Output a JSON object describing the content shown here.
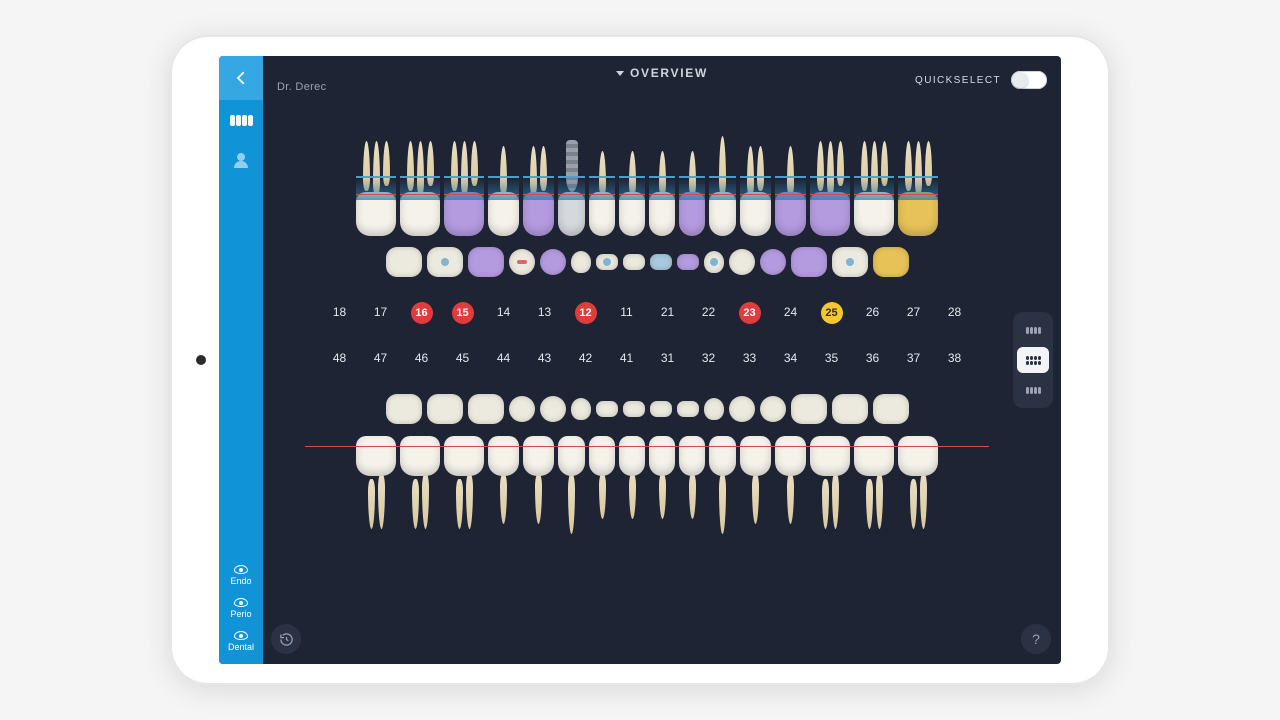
{
  "colors": {
    "sidebar": "#1193d8",
    "sidebar_light": "#35a8e4",
    "screen_bg": "#1e2433",
    "panel_bg": "#2b3244",
    "text_muted": "#9aa3b2",
    "text": "#e3e7ef",
    "badge_red": "#e13b3b",
    "badge_yellow": "#f2c72f",
    "perio_line": "#d94b4b",
    "gum_overlay": "#2b7aa8",
    "fill_purple": "#b49be0",
    "fill_blue": "#8fc2d9",
    "fill_yellow": "#e6c259",
    "tooth": "#ebe5d8",
    "implant": "#9aa0aa"
  },
  "header": {
    "doctor": "Dr. Derec",
    "title": "OVERVIEW",
    "quickselect_label": "QUICKSELECT",
    "quickselect_on": false
  },
  "sidebar": {
    "top_icons": [
      {
        "name": "teeth-chart-icon",
        "active": true
      },
      {
        "name": "patient-icon",
        "active": false
      }
    ],
    "bottom": [
      {
        "name": "endo-toggle",
        "label": "Endo"
      },
      {
        "name": "perio-toggle",
        "label": "Perio"
      },
      {
        "name": "dental-toggle",
        "label": "Dental"
      }
    ]
  },
  "view_selector": {
    "options": [
      "upper",
      "both",
      "lower"
    ],
    "active_index": 1
  },
  "teeth": {
    "upper": [
      {
        "num": 18,
        "type": "molar",
        "fill": "white",
        "occ": "white",
        "roots": 3
      },
      {
        "num": 17,
        "type": "molar",
        "fill": "white",
        "occ": "white",
        "roots": 3,
        "occ_mark": "blue"
      },
      {
        "num": 16,
        "type": "molar",
        "fill": "purple",
        "occ": "purple",
        "roots": 3,
        "badge": "red"
      },
      {
        "num": 15,
        "type": "premolar",
        "fill": "white",
        "occ": "white",
        "roots": 1,
        "occ_mark": "red",
        "badge": "red"
      },
      {
        "num": 14,
        "type": "premolar",
        "fill": "purple",
        "occ": "purple",
        "roots": 2
      },
      {
        "num": 13,
        "type": "canine",
        "fill": "white",
        "occ": "white",
        "roots": 1,
        "implant": true
      },
      {
        "num": 12,
        "type": "incisor",
        "fill": "white",
        "occ": "white",
        "roots": 1,
        "occ_mark": "blue",
        "badge": "red"
      },
      {
        "num": 11,
        "type": "incisor",
        "fill": "white",
        "occ": "white",
        "roots": 1
      },
      {
        "num": 21,
        "type": "incisor",
        "fill": "white",
        "occ": "blue",
        "roots": 1
      },
      {
        "num": 22,
        "type": "incisor",
        "fill": "purple",
        "occ": "purple",
        "roots": 1
      },
      {
        "num": 23,
        "type": "canine",
        "fill": "white",
        "occ": "white",
        "roots": 1,
        "occ_mark": "blue",
        "badge": "red"
      },
      {
        "num": 24,
        "type": "premolar",
        "fill": "white",
        "occ": "white",
        "roots": 2
      },
      {
        "num": 25,
        "type": "premolar",
        "fill": "purple",
        "occ": "purple",
        "roots": 1,
        "badge": "yellow"
      },
      {
        "num": 26,
        "type": "molar",
        "fill": "purple",
        "occ": "purple",
        "roots": 3
      },
      {
        "num": 27,
        "type": "molar",
        "fill": "white",
        "occ": "white",
        "roots": 3,
        "occ_mark": "blue"
      },
      {
        "num": 28,
        "type": "molar",
        "fill": "yellow",
        "occ": "yellow",
        "roots": 3
      }
    ],
    "lower": [
      {
        "num": 48,
        "type": "molar",
        "roots": 2
      },
      {
        "num": 47,
        "type": "molar",
        "roots": 2
      },
      {
        "num": 46,
        "type": "molar",
        "roots": 2
      },
      {
        "num": 45,
        "type": "premolar",
        "roots": 1
      },
      {
        "num": 44,
        "type": "premolar",
        "roots": 1
      },
      {
        "num": 43,
        "type": "canine",
        "roots": 1
      },
      {
        "num": 42,
        "type": "incisor",
        "roots": 1
      },
      {
        "num": 41,
        "type": "incisor",
        "roots": 1
      },
      {
        "num": 31,
        "type": "incisor",
        "roots": 1
      },
      {
        "num": 32,
        "type": "incisor",
        "roots": 1
      },
      {
        "num": 33,
        "type": "canine",
        "roots": 1
      },
      {
        "num": 34,
        "type": "premolar",
        "roots": 1
      },
      {
        "num": 35,
        "type": "premolar",
        "roots": 1
      },
      {
        "num": 36,
        "type": "molar",
        "roots": 2
      },
      {
        "num": 37,
        "type": "molar",
        "roots": 2
      },
      {
        "num": 38,
        "type": "molar",
        "roots": 2
      }
    ]
  }
}
